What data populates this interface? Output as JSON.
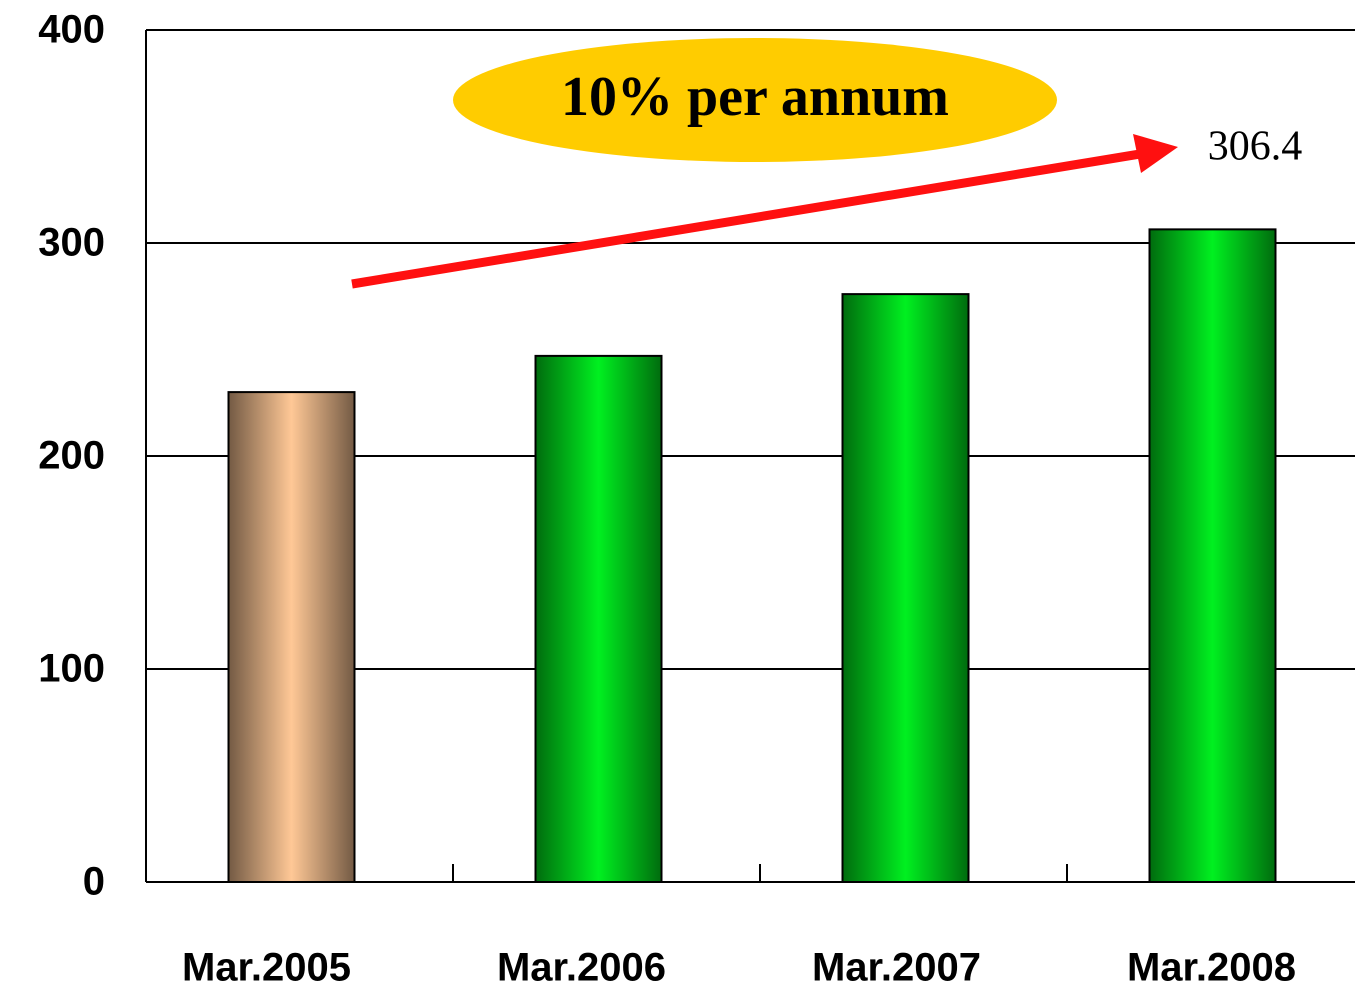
{
  "chart_data": {
    "type": "bar",
    "annotation": "10% per annum",
    "categories": [
      "Mar.2005",
      "Mar.2006",
      "Mar.2007",
      "Mar.2008"
    ],
    "values": [
      230,
      247,
      276,
      306.4
    ],
    "colors": [
      "#ffc896",
      "#00f020",
      "#00f020",
      "#00f020"
    ],
    "ylim": [
      0,
      400
    ],
    "yticks": [
      0,
      100,
      200,
      300,
      400
    ],
    "grid": true
  }
}
